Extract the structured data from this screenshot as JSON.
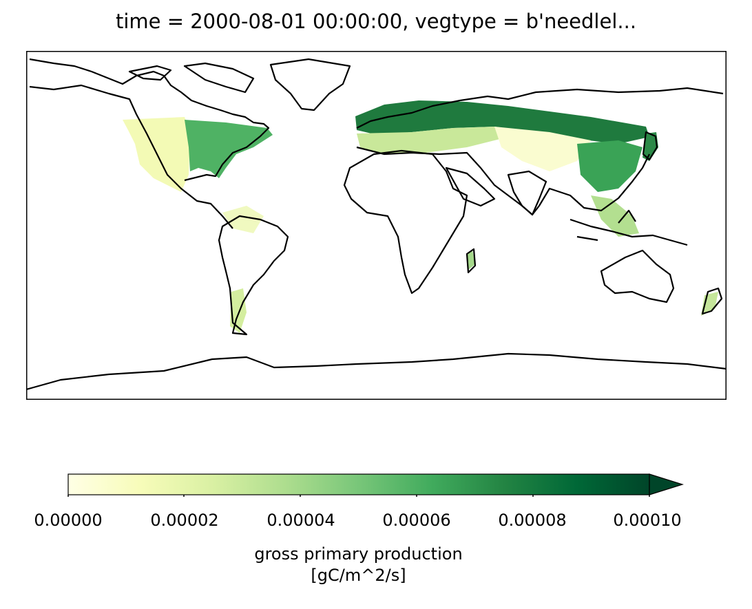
{
  "title": "time = 2000-08-01 00:00:00, vegtype = b'needlel...",
  "colorbar": {
    "label_line1": "gross primary production",
    "label_line2": "[gC/m^2/s]",
    "ticks": [
      "0.00000",
      "0.00002",
      "0.00004",
      "0.00006",
      "0.00008",
      "0.00010"
    ],
    "vmin": 0.0,
    "vmax": 0.0001,
    "extend": "max",
    "colormap": "YlGn",
    "colors": [
      "#ffffe5",
      "#f7fcb9",
      "#d9f0a3",
      "#addd8e",
      "#78c679",
      "#41ab5d",
      "#238443",
      "#006837",
      "#004529"
    ]
  },
  "map": {
    "projection": "PlateCarree",
    "coastlines": "black",
    "gpp_regions": [
      {
        "name": "western-north-america",
        "level": 2e-05
      },
      {
        "name": "eastern-north-america",
        "level": 6e-05
      },
      {
        "name": "northern-europe-siberia",
        "level": 9e-05
      },
      {
        "name": "central-asia",
        "level": 1e-05
      },
      {
        "name": "east-china",
        "level": 6e-05
      },
      {
        "name": "japan",
        "level": 7e-05
      },
      {
        "name": "southeast-asia",
        "level": 4e-05
      },
      {
        "name": "southern-south-america",
        "level": 2e-05
      },
      {
        "name": "new-zealand",
        "level": 3e-05
      }
    ]
  }
}
